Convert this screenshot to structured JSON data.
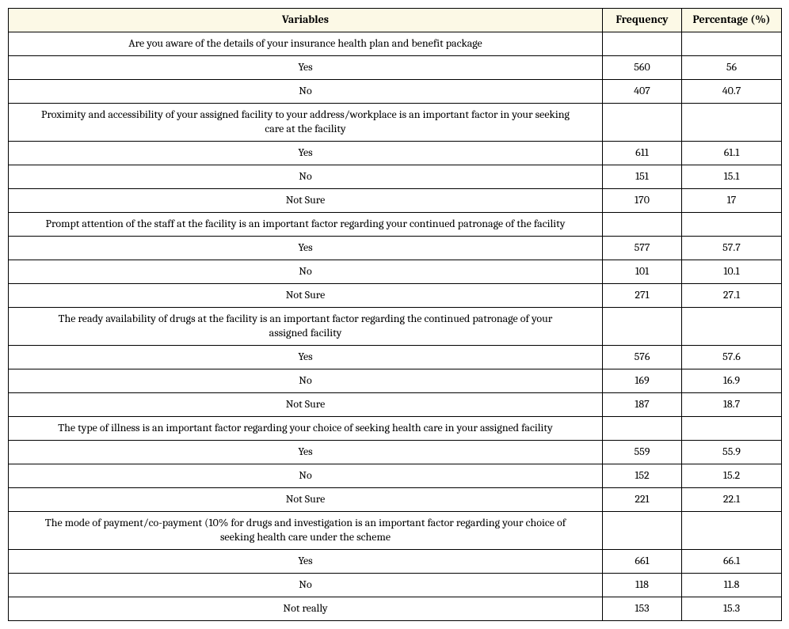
{
  "table": {
    "header": {
      "variables": "Variables",
      "frequency": "Frequency",
      "percentage": "Percentage (%)"
    },
    "sections": [
      {
        "question": "Are you aware of the details of your insurance health plan and benefit package",
        "rows": [
          {
            "label": "Yes",
            "freq": "560",
            "pct": "56"
          },
          {
            "label": "No",
            "freq": "407",
            "pct": "40.7"
          }
        ]
      },
      {
        "question": "Proximity and accessibility of your assigned facility to your address/workplace is an important factor in your seeking care at the facility",
        "rows": [
          {
            "label": "Yes",
            "freq": "611",
            "pct": "61.1"
          },
          {
            "label": "No",
            "freq": "151",
            "pct": "15.1"
          },
          {
            "label": "Not Sure",
            "freq": "170",
            "pct": "17"
          }
        ]
      },
      {
        "question": "Prompt attention of the staff at the facility is an important factor regarding your continued patronage of the facility",
        "rows": [
          {
            "label": "Yes",
            "freq": "577",
            "pct": "57.7"
          },
          {
            "label": "No",
            "freq": "101",
            "pct": "10.1"
          },
          {
            "label": "Not Sure",
            "freq": "271",
            "pct": "27.1"
          }
        ]
      },
      {
        "question": "The ready availability of drugs at the facility is an important factor regarding the continued patronage of your assigned facility",
        "rows": [
          {
            "label": "Yes",
            "freq": "576",
            "pct": "57.6"
          },
          {
            "label": "No",
            "freq": "169",
            "pct": "16.9"
          },
          {
            "label": "Not Sure",
            "freq": "187",
            "pct": "18.7"
          }
        ]
      },
      {
        "question": "The type of illness is an important factor regarding your choice of seeking health care in your assigned facility",
        "rows": [
          {
            "label": "Yes",
            "freq": "559",
            "pct": "55.9"
          },
          {
            "label": "No",
            "freq": "152",
            "pct": "15.2"
          },
          {
            "label": "Not Sure",
            "freq": "221",
            "pct": "22.1"
          }
        ]
      },
      {
        "question": "The mode of payment/co-payment (10% for drugs and investigation is an important factor regarding your choice of seeking health care under the scheme",
        "rows": [
          {
            "label": "Yes",
            "freq": "661",
            "pct": "66.1"
          },
          {
            "label": "No",
            "freq": "118",
            "pct": "11.8"
          },
          {
            "label": "Not really",
            "freq": "153",
            "pct": "15.3"
          }
        ]
      }
    ]
  }
}
